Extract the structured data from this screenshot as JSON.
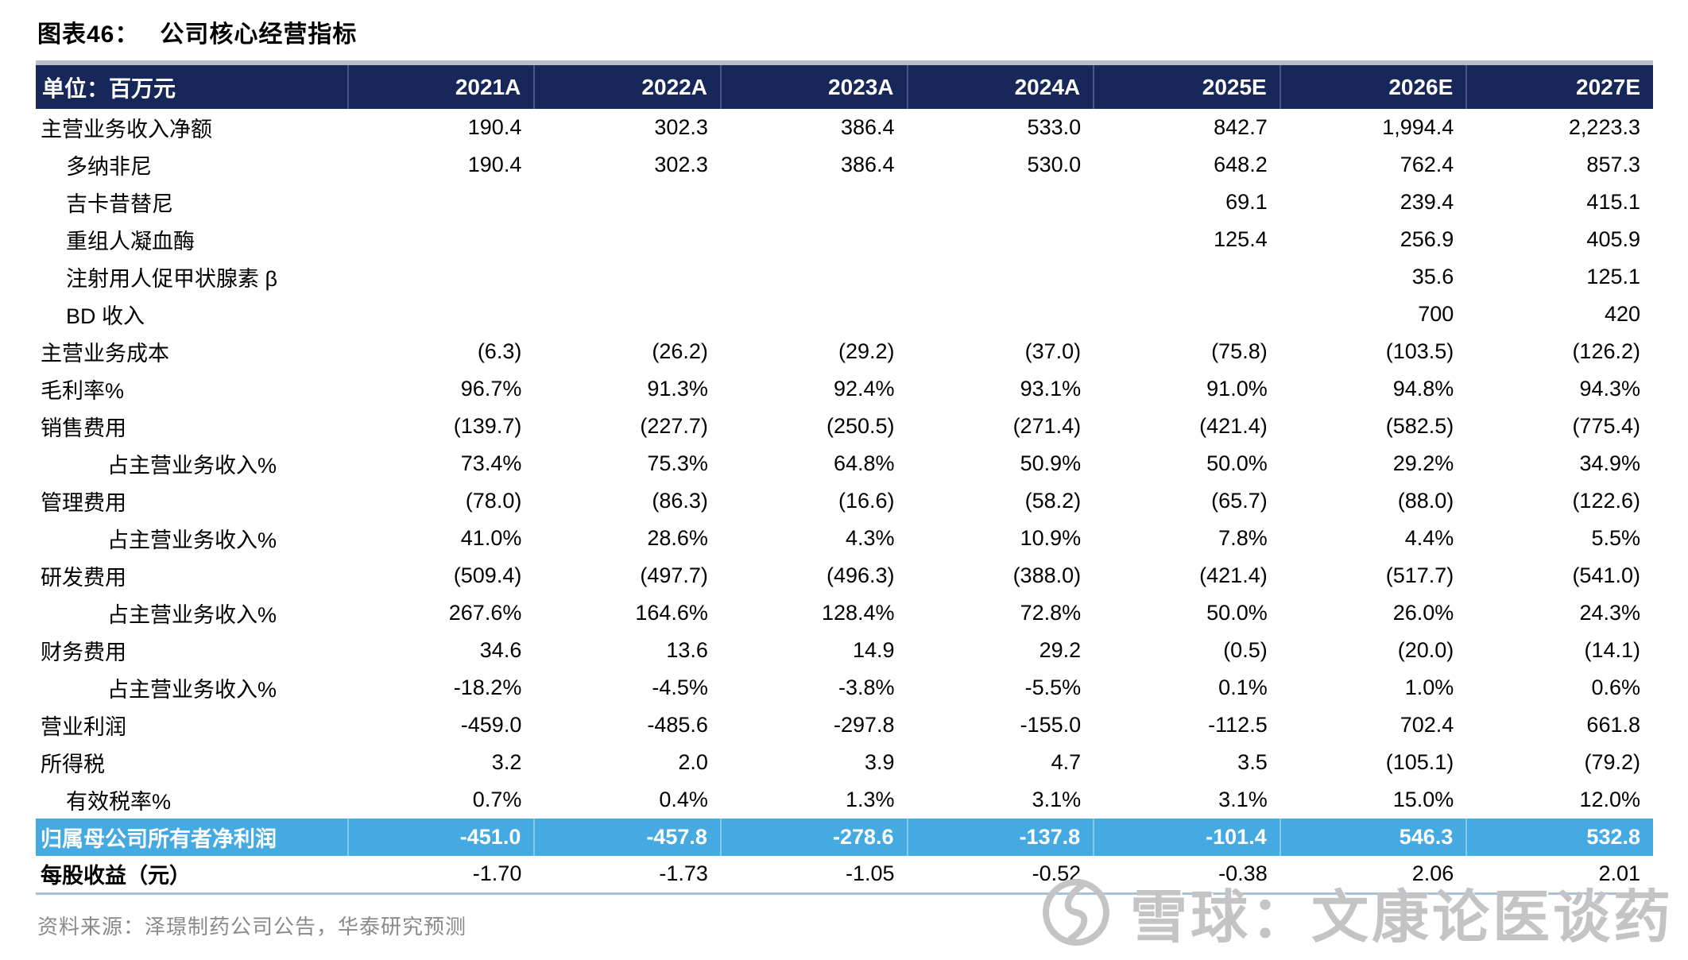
{
  "title": {
    "prefix": "图表46：",
    "text": "公司核心经营指标"
  },
  "table": {
    "unit_label": "单位：百万元",
    "columns": [
      "2021A",
      "2022A",
      "2023A",
      "2024A",
      "2025E",
      "2026E",
      "2027E"
    ],
    "rows": [
      {
        "label": "主营业务收入净额",
        "indent": 0,
        "values": [
          "190.4",
          "302.3",
          "386.4",
          "533.0",
          "842.7",
          "1,994.4",
          "2,223.3"
        ]
      },
      {
        "label": "多纳非尼",
        "indent": 1,
        "values": [
          "190.4",
          "302.3",
          "386.4",
          "530.0",
          "648.2",
          "762.4",
          "857.3"
        ]
      },
      {
        "label": "吉卡昔替尼",
        "indent": 1,
        "values": [
          "",
          "",
          "",
          "",
          "69.1",
          "239.4",
          "415.1"
        ]
      },
      {
        "label": "重组人凝血酶",
        "indent": 1,
        "values": [
          "",
          "",
          "",
          "",
          "125.4",
          "256.9",
          "405.9"
        ]
      },
      {
        "label": "注射用人促甲状腺素 β",
        "indent": 1,
        "values": [
          "",
          "",
          "",
          "",
          "",
          "35.6",
          "125.1"
        ]
      },
      {
        "label": "BD 收入",
        "indent": 1,
        "values": [
          "",
          "",
          "",
          "",
          "",
          "700",
          "420"
        ]
      },
      {
        "label": "主营业务成本",
        "indent": 0,
        "values": [
          "(6.3)",
          "(26.2)",
          "(29.2)",
          "(37.0)",
          "(75.8)",
          "(103.5)",
          "(126.2)"
        ]
      },
      {
        "label": "毛利率%",
        "indent": 0,
        "values": [
          "96.7%",
          "91.3%",
          "92.4%",
          "93.1%",
          "91.0%",
          "94.8%",
          "94.3%"
        ]
      },
      {
        "label": "销售费用",
        "indent": 0,
        "values": [
          "(139.7)",
          "(227.7)",
          "(250.5)",
          "(271.4)",
          "(421.4)",
          "(582.5)",
          "(775.4)"
        ]
      },
      {
        "label": "占主营业务收入%",
        "indent": 2,
        "values": [
          "73.4%",
          "75.3%",
          "64.8%",
          "50.9%",
          "50.0%",
          "29.2%",
          "34.9%"
        ]
      },
      {
        "label": "管理费用",
        "indent": 0,
        "values": [
          "(78.0)",
          "(86.3)",
          "(16.6)",
          "(58.2)",
          "(65.7)",
          "(88.0)",
          "(122.6)"
        ]
      },
      {
        "label": "占主营业务收入%",
        "indent": 2,
        "values": [
          "41.0%",
          "28.6%",
          "4.3%",
          "10.9%",
          "7.8%",
          "4.4%",
          "5.5%"
        ]
      },
      {
        "label": "研发费用",
        "indent": 0,
        "values": [
          "(509.4)",
          "(497.7)",
          "(496.3)",
          "(388.0)",
          "(421.4)",
          "(517.7)",
          "(541.0)"
        ]
      },
      {
        "label": "占主营业务收入%",
        "indent": 2,
        "values": [
          "267.6%",
          "164.6%",
          "128.4%",
          "72.8%",
          "50.0%",
          "26.0%",
          "24.3%"
        ]
      },
      {
        "label": "财务费用",
        "indent": 0,
        "values": [
          "34.6",
          "13.6",
          "14.9",
          "29.2",
          "(0.5)",
          "(20.0)",
          "(14.1)"
        ]
      },
      {
        "label": "占主营业务收入%",
        "indent": 2,
        "values": [
          "-18.2%",
          "-4.5%",
          "-3.8%",
          "-5.5%",
          "0.1%",
          "1.0%",
          "0.6%"
        ]
      },
      {
        "label": "营业利润",
        "indent": 0,
        "values": [
          "-459.0",
          "-485.6",
          "-297.8",
          "-155.0",
          "-112.5",
          "702.4",
          "661.8"
        ]
      },
      {
        "label": "所得税",
        "indent": 0,
        "values": [
          "3.2",
          "2.0",
          "3.9",
          "4.7",
          "3.5",
          "(105.1)",
          "(79.2)"
        ]
      },
      {
        "label": "有效税率%",
        "indent": 1,
        "values": [
          "0.7%",
          "0.4%",
          "1.3%",
          "3.1%",
          "3.1%",
          "15.0%",
          "12.0%"
        ]
      },
      {
        "label": "归属母公司所有者净利润",
        "indent": 0,
        "highlight": true,
        "values": [
          "-451.0",
          "-457.8",
          "-278.6",
          "-137.8",
          "-101.4",
          "546.3",
          "532.8"
        ]
      },
      {
        "label": "每股收益（元）",
        "indent": 0,
        "eps": true,
        "values": [
          "-1.70",
          "-1.73",
          "-1.05",
          "-0.52",
          "-0.38",
          "2.06",
          "2.01"
        ]
      }
    ]
  },
  "footer": {
    "source": "资料来源：泽璟制药公司公告，华泰研究预测"
  },
  "watermark": {
    "icon": "xueqiu-logo",
    "text": "雪球：文康论医谈药"
  },
  "colors": {
    "header_bg": "#172759",
    "header_top_strip": "#B9C0CC",
    "highlight_bg": "#45AAE2",
    "divider": "#A9C1D6",
    "footer_text": "#8A8A8A",
    "watermark_text": "#C4C4C6"
  }
}
